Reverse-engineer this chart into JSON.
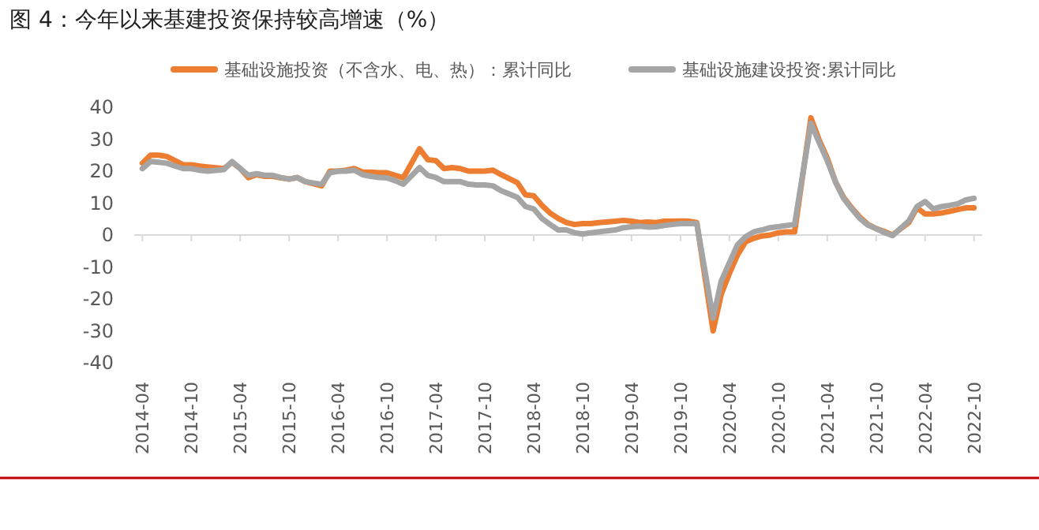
{
  "chart_data": {
    "type": "line",
    "title": "图 4：今年以来基建投资保持较高增速（%）",
    "legend": "top",
    "line_style": "solid",
    "xlim": [
      "2014-03",
      "2022-11"
    ],
    "xticks": [
      "2014-04",
      "2014-10",
      "2015-04",
      "2015-10",
      "2016-04",
      "2016-10",
      "2017-04",
      "2017-10",
      "2018-04",
      "2018-10",
      "2019-04",
      "2019-10",
      "2020-04",
      "2020-10",
      "2021-04",
      "2021-10",
      "2022-04",
      "2022-10"
    ],
    "ylim": [
      -40,
      40
    ],
    "yticks": [
      -40,
      -30,
      -20,
      -10,
      0,
      10,
      20,
      30,
      40
    ],
    "x": [
      "2014-04",
      "2014-05",
      "2014-06",
      "2014-07",
      "2014-08",
      "2014-09",
      "2014-10",
      "2014-11",
      "2014-12",
      "2015-02",
      "2015-03",
      "2015-04",
      "2015-05",
      "2015-06",
      "2015-07",
      "2015-08",
      "2015-09",
      "2015-10",
      "2015-11",
      "2015-12",
      "2016-02",
      "2016-03",
      "2016-04",
      "2016-05",
      "2016-06",
      "2016-07",
      "2016-08",
      "2016-09",
      "2016-10",
      "2016-11",
      "2016-12",
      "2017-02",
      "2017-03",
      "2017-04",
      "2017-05",
      "2017-06",
      "2017-07",
      "2017-08",
      "2017-09",
      "2017-10",
      "2017-11",
      "2017-12",
      "2018-02",
      "2018-03",
      "2018-04",
      "2018-05",
      "2018-06",
      "2018-07",
      "2018-08",
      "2018-09",
      "2018-10",
      "2018-11",
      "2018-12",
      "2019-02",
      "2019-03",
      "2019-04",
      "2019-05",
      "2019-06",
      "2019-07",
      "2019-08",
      "2019-09",
      "2019-10",
      "2019-11",
      "2019-12",
      "2020-02",
      "2020-03",
      "2020-04",
      "2020-05",
      "2020-06",
      "2020-07",
      "2020-08",
      "2020-09",
      "2020-10",
      "2020-11",
      "2020-12",
      "2021-02",
      "2021-03",
      "2021-04",
      "2021-05",
      "2021-06",
      "2021-07",
      "2021-08",
      "2021-09",
      "2021-10",
      "2021-11",
      "2021-12",
      "2022-02",
      "2022-03",
      "2022-04",
      "2022-05",
      "2022-06",
      "2022-07",
      "2022-08",
      "2022-09",
      "2022-10"
    ],
    "series": [
      {
        "name": "基础设施投资（不含水、电、热）：累计同比",
        "color": "#ed7d31",
        "values": [
          22.5,
          25,
          25,
          24.6,
          23.3,
          22,
          22,
          21.6,
          21.3,
          20.8,
          22.8,
          20.8,
          18,
          18.9,
          18.4,
          18.4,
          17.9,
          17.5,
          18,
          16.7,
          15.4,
          20,
          20,
          20.3,
          20.8,
          19.7,
          19.7,
          19.5,
          19.5,
          18.7,
          17.9,
          27,
          23.6,
          23.3,
          20.8,
          21.1,
          20.8,
          20,
          20,
          20,
          20.3,
          18.9,
          16.4,
          12.6,
          12.3,
          9.3,
          6.9,
          5.2,
          3.9,
          3.3,
          3.6,
          3.6,
          3.9,
          4.3,
          4.6,
          4.3,
          3.9,
          4.1,
          3.9,
          4.3,
          4.3,
          4.4,
          4.3,
          3.9,
          -30,
          -18.5,
          -12,
          -6.2,
          -2.1,
          -1,
          -0.3,
          0,
          0.7,
          1,
          1,
          36.7,
          29.8,
          24.1,
          16.7,
          11.8,
          8.5,
          5.6,
          3.3,
          2,
          1.1,
          0,
          3.9,
          8.5,
          6.6,
          6.6,
          6.9,
          7.4,
          8,
          8.5,
          8.5
        ]
      },
      {
        "name": "基础设施建设投资:累计同比",
        "color": "#a5a5a5",
        "values": [
          20.8,
          23,
          22.8,
          22.5,
          21.6,
          20.8,
          20.8,
          20.3,
          20,
          20.5,
          23,
          20.8,
          18.7,
          19.2,
          18.7,
          18.7,
          18,
          17.5,
          18,
          16.7,
          15.9,
          19.5,
          20,
          20,
          20.3,
          18.9,
          18.4,
          18,
          17.9,
          17,
          15.9,
          21.1,
          18.7,
          18,
          16.7,
          16.7,
          16.7,
          15.9,
          15.7,
          15.7,
          15.4,
          13.9,
          11.8,
          8.9,
          8.2,
          5.2,
          3.3,
          1.6,
          1.6,
          0.7,
          0.3,
          0.7,
          1,
          1.6,
          2.3,
          2.6,
          2.8,
          2.5,
          2.6,
          3,
          3.3,
          3.6,
          3.6,
          3.6,
          -26,
          -14.4,
          -8.7,
          -3,
          -0.5,
          1,
          1.6,
          2.3,
          2.6,
          3,
          3.3,
          35,
          29,
          23.3,
          16.7,
          11.5,
          8.2,
          5.2,
          3.1,
          2,
          0.8,
          -0.2,
          4.4,
          8.9,
          10.5,
          8.2,
          8.9,
          9.3,
          9.8,
          11,
          11.5
        ]
      }
    ]
  }
}
